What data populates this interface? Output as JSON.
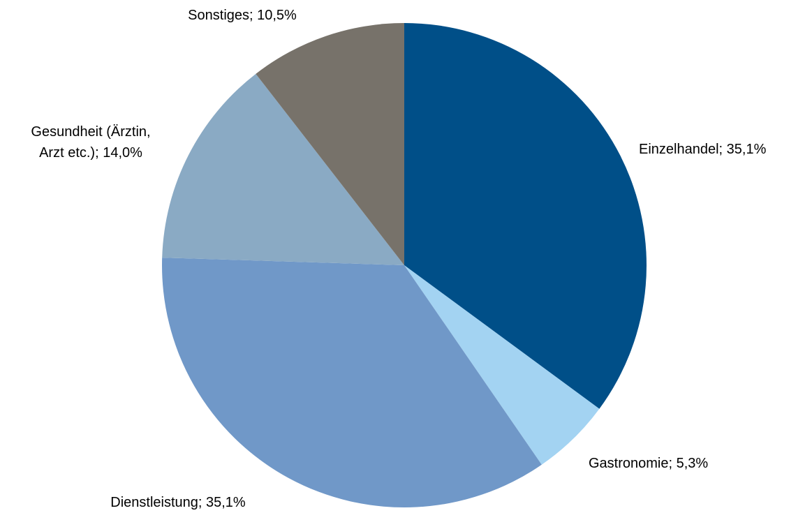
{
  "chart_data": {
    "type": "pie",
    "values": [
      35.1,
      5.3,
      35.1,
      14.0,
      10.5
    ],
    "value_labels": [
      "Einzelhandel; 35,1%",
      "Gastronomie; 5,3%",
      "Dienstleistung; 35,1%",
      "Gesundheit (Ärztin,\nArzt etc.); 14,0%",
      "Sonstiges; 10,5%"
    ],
    "colors": [
      "#004f88",
      "#a3d3f2",
      "#7098c8",
      "#8aaac4",
      "#77726a"
    ]
  }
}
